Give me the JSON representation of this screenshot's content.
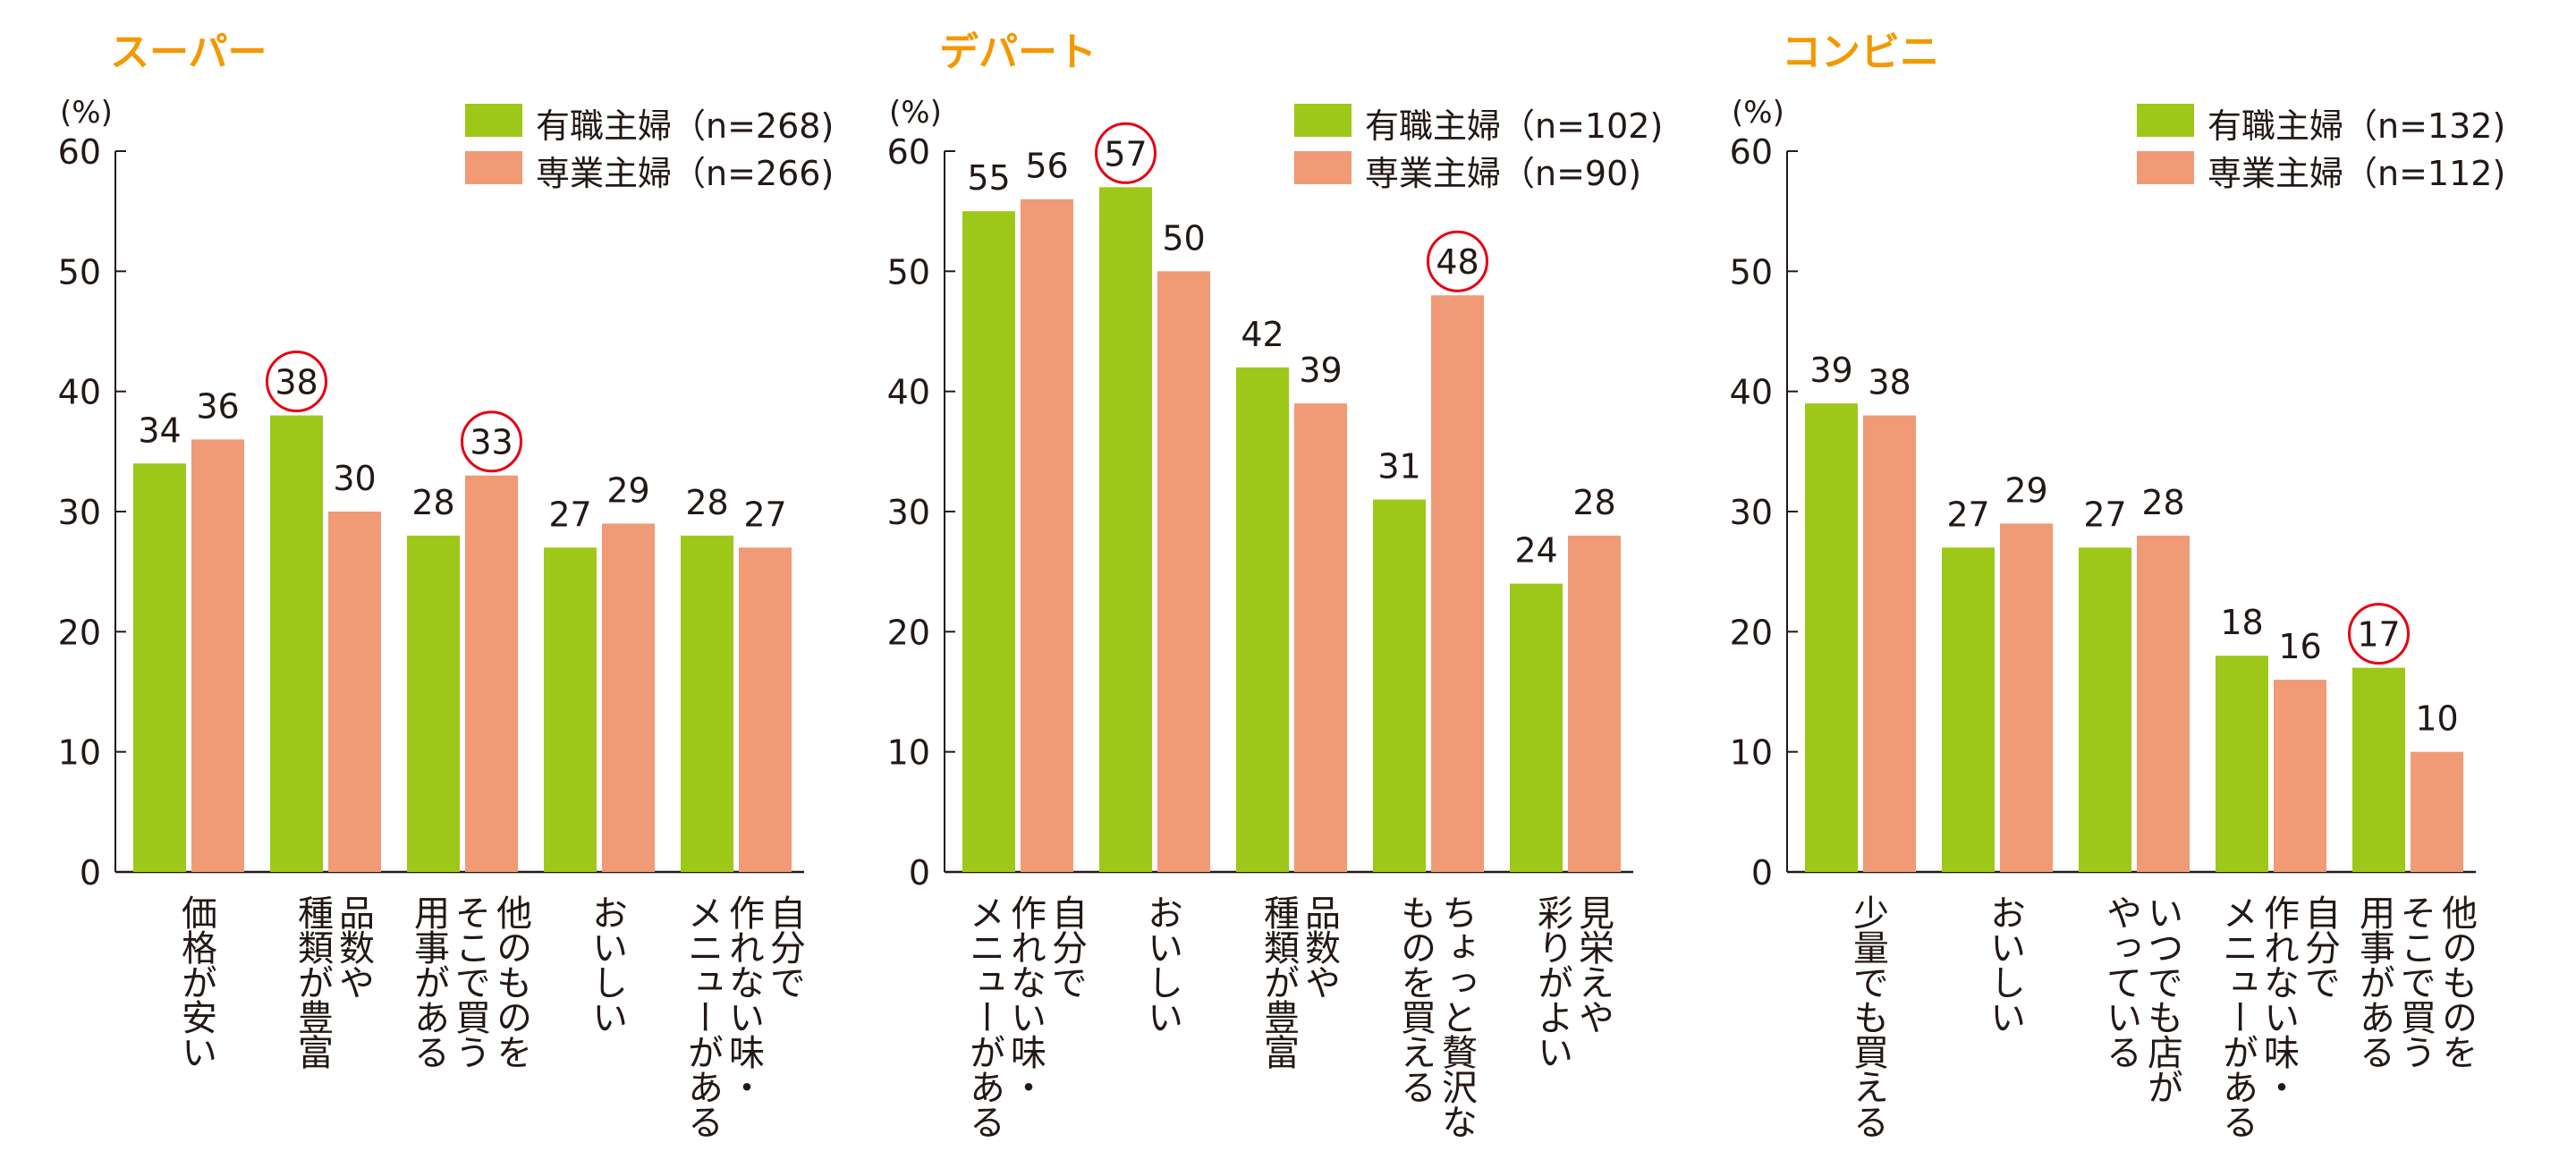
{
  "colors": {
    "working": "#9dc81a",
    "homemaker": "#f09a76",
    "title": "#f39800",
    "highlight": "#e60012",
    "axis": "#231815"
  },
  "chart_data": [
    {
      "type": "bar",
      "title": "スーパー",
      "ylabel": "(%)",
      "ylim": [
        0,
        60
      ],
      "yticks": [
        0,
        10,
        20,
        30,
        40,
        50,
        60
      ],
      "legend": "top-right",
      "categories": [
        "価格が安い",
        "品数や\n種類が豊富",
        "他のものを\nそこで買う\n用事がある",
        "おいしい",
        "自分で\n作れない味・\nメニューがある"
      ],
      "series": [
        {
          "name": "有職主婦（n=268)",
          "values": [
            34,
            38,
            28,
            27,
            28
          ],
          "highlighted": [
            false,
            true,
            false,
            false,
            false
          ]
        },
        {
          "name": "専業主婦（n=266)",
          "values": [
            36,
            30,
            33,
            29,
            27
          ],
          "highlighted": [
            false,
            false,
            true,
            false,
            false
          ]
        }
      ]
    },
    {
      "type": "bar",
      "title": "デパート",
      "ylabel": "(%)",
      "ylim": [
        0,
        60
      ],
      "yticks": [
        0,
        10,
        20,
        30,
        40,
        50,
        60
      ],
      "legend": "top-right",
      "categories": [
        "自分で\n作れない味・\nメニューがある",
        "おいしい",
        "品数や\n種類が豊富",
        "ちょっと贅沢な\nものを買える",
        "見栄えや\n彩りがよい"
      ],
      "series": [
        {
          "name": "有職主婦（n=102)",
          "values": [
            55,
            57,
            42,
            31,
            24
          ],
          "highlighted": [
            false,
            true,
            false,
            false,
            false
          ]
        },
        {
          "name": "専業主婦（n=90)",
          "values": [
            56,
            50,
            39,
            48,
            28
          ],
          "highlighted": [
            false,
            false,
            false,
            true,
            false
          ]
        }
      ]
    },
    {
      "type": "bar",
      "title": "コンビニ",
      "ylabel": "(%)",
      "ylim": [
        0,
        60
      ],
      "yticks": [
        0,
        10,
        20,
        30,
        40,
        50,
        60
      ],
      "legend": "top-right",
      "categories": [
        "少量でも買える",
        "おいしい",
        "いつでも店が\nやっている",
        "自分で\n作れない味・\nメニューがある",
        "他のものを\nそこで買う\n用事がある"
      ],
      "series": [
        {
          "name": "有職主婦（n=132)",
          "values": [
            39,
            27,
            27,
            18,
            17
          ],
          "highlighted": [
            false,
            false,
            false,
            false,
            true
          ]
        },
        {
          "name": "専業主婦（n=112)",
          "values": [
            38,
            29,
            28,
            16,
            10
          ],
          "highlighted": [
            false,
            false,
            false,
            false,
            false
          ]
        }
      ]
    }
  ]
}
